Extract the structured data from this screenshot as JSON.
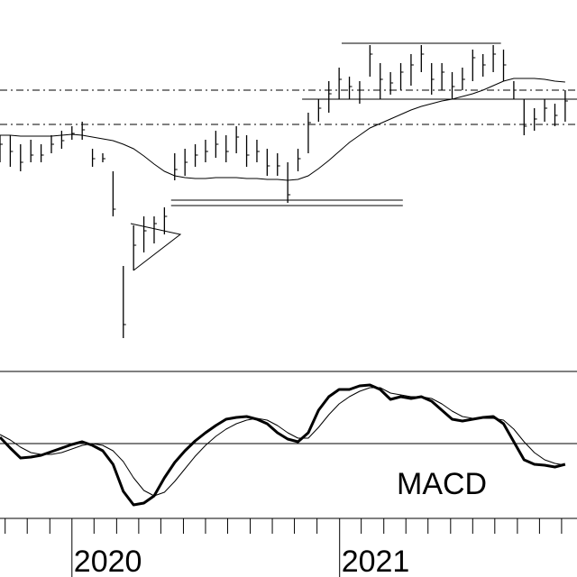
{
  "chart_data": [
    {
      "type": "ohlc",
      "x": [
        0,
        2,
        4,
        6,
        8,
        10,
        12,
        14,
        16,
        18,
        20,
        22,
        24,
        26,
        28,
        30,
        32,
        34,
        36,
        38,
        40,
        42,
        44,
        46,
        48,
        50,
        52,
        54,
        56,
        58,
        60,
        62,
        64,
        66,
        68,
        70,
        72,
        74,
        76,
        78,
        80,
        82,
        84,
        86,
        88,
        90,
        92,
        94,
        96,
        98,
        100,
        102,
        104,
        106,
        108,
        110
      ],
      "xlim": [
        0,
        112.3
      ],
      "xticks": [
        {
          "value": 14,
          "label": "2020"
        },
        {
          "value": 66.1,
          "label": "2021"
        }
      ],
      "minor_xticks": [
        1.0,
        5.3,
        9.7,
        18.3,
        22.7,
        27,
        31.3,
        35.7,
        40,
        44.3,
        48.7,
        53,
        57.3,
        61.7,
        70.3,
        74.7,
        79,
        83.3,
        87.7,
        92,
        96.3,
        100.7,
        105,
        109.3
      ],
      "ylim": [
        0,
        100
      ],
      "high": [
        62.5,
        62.5,
        60,
        61.25,
        60,
        62.5,
        63.75,
        65,
        66.25,
        58.75,
        57.5,
        52.5,
        26.25,
        37.5,
        40,
        40,
        42.5,
        57.5,
        58.75,
        60,
        61.25,
        63.75,
        62.5,
        65,
        62.5,
        61.25,
        58.75,
        57.5,
        55,
        58.75,
        68.75,
        72.5,
        77.5,
        81.25,
        78.75,
        77.5,
        87.5,
        82.5,
        80,
        82.5,
        85,
        87.5,
        82.5,
        82.5,
        80,
        81.25,
        86.25,
        85,
        87.5,
        86.25,
        77.5,
        72.5,
        70,
        72.5,
        71.25,
        75
      ],
      "low": [
        55,
        53.75,
        52.5,
        55,
        55,
        57.5,
        58.75,
        61.25,
        61.25,
        53.75,
        55,
        40,
        6.25,
        25,
        30,
        32.5,
        35,
        50,
        51.25,
        53.75,
        55,
        56.25,
        55,
        57.5,
        53.75,
        55,
        51.25,
        51.25,
        43.75,
        52.5,
        57.5,
        66.25,
        68.75,
        72.5,
        72.5,
        71.25,
        78.75,
        72.5,
        73.75,
        75,
        76.25,
        80,
        73.75,
        75,
        72.5,
        75,
        77.5,
        78.75,
        80,
        77.5,
        72.5,
        62.5,
        63.75,
        66.25,
        65,
        66.25
      ],
      "close": [
        60,
        58,
        55,
        57,
        57,
        60,
        61,
        63,
        64,
        56,
        56,
        42,
        10,
        32,
        36,
        38,
        40,
        53,
        55,
        57,
        58,
        60,
        58,
        62,
        57,
        58,
        54,
        54,
        46,
        56,
        66,
        70,
        74,
        78,
        76,
        75,
        85,
        78,
        77,
        80,
        82,
        85,
        78,
        80,
        76,
        78,
        84,
        82,
        85,
        82,
        75,
        65,
        67,
        70,
        68,
        72
      ],
      "moving_average": {
        "color": "#000000",
        "values": [
          62.5,
          62.5,
          62.25,
          62.25,
          62.25,
          62.25,
          62.5,
          62.75,
          62.5,
          62,
          61.5,
          61,
          60,
          58.75,
          56.75,
          54.5,
          52.5,
          51.25,
          50.75,
          50.5,
          50.5,
          50.75,
          50.75,
          50.75,
          50.5,
          50.5,
          50.25,
          50.25,
          50,
          50.25,
          51.25,
          53.25,
          55.5,
          58,
          60.5,
          62.5,
          64.5,
          65.75,
          67,
          68.25,
          69.5,
          70.5,
          71.25,
          72,
          72.5,
          73.25,
          74,
          75,
          76.25,
          77.5,
          78.25,
          78.25,
          78.25,
          78,
          77.5,
          77.25
        ]
      },
      "levels": [
        {
          "y": 75,
          "style": "dashdot",
          "x": [
            0,
            112.3
          ]
        },
        {
          "y": 65.5,
          "style": "dashdot",
          "x": [
            0,
            112.3
          ]
        },
        {
          "y": 88,
          "style": "solid",
          "x": [
            66.5,
            97.5
          ]
        },
        {
          "y": 72.5,
          "style": "solid",
          "x": [
            58.8,
            112.3
          ]
        },
        {
          "y": 44.5,
          "style": "solid",
          "x": [
            33.3,
            78.4
          ]
        },
        {
          "y": 43,
          "style": "solid",
          "x": [
            33.3,
            78.4
          ]
        }
      ],
      "color": "#000000"
    },
    {
      "type": "line",
      "title": "MACD",
      "ylim": [
        -2,
        2
      ],
      "zero_line": 0,
      "series": [
        {
          "color": "#000000",
          "width": 3,
          "values": [
            0.175,
            -0.125,
            -0.4,
            -0.375,
            -0.325,
            -0.225,
            -0.125,
            -0.025,
            0.05,
            -0.05,
            -0.2,
            -0.575,
            -1.325,
            -1.7,
            -1.65,
            -1.45,
            -0.95,
            -0.525,
            -0.2,
            0.075,
            0.3,
            0.5,
            0.675,
            0.725,
            0.75,
            0.675,
            0.55,
            0.3,
            0.125,
            0.05,
            0.3,
            0.925,
            1.3,
            1.5,
            1.5,
            1.6,
            1.625,
            1.5,
            1.225,
            1.3,
            1.25,
            1.3,
            1.175,
            0.925,
            0.675,
            0.625,
            0.675,
            0.725,
            0.75,
            0.55,
            0.05,
            -0.45,
            -0.575,
            -0.6,
            -0.65,
            -0.575
          ]
        },
        {
          "color": "#000000",
          "width": 1,
          "values": [
            0.25,
            0.1,
            -0.1,
            -0.25,
            -0.3,
            -0.3,
            -0.25,
            -0.15,
            -0.05,
            0,
            -0.05,
            -0.2,
            -0.5,
            -0.95,
            -1.3,
            -1.45,
            -1.35,
            -1.05,
            -0.7,
            -0.35,
            -0.05,
            0.2,
            0.4,
            0.55,
            0.65,
            0.7,
            0.65,
            0.5,
            0.3,
            0.15,
            0.15,
            0.45,
            0.8,
            1.1,
            1.3,
            1.45,
            1.55,
            1.55,
            1.4,
            1.35,
            1.3,
            1.3,
            1.25,
            1.1,
            0.9,
            0.75,
            0.7,
            0.7,
            0.7,
            0.65,
            0.4,
            0.05,
            -0.25,
            -0.45,
            -0.55,
            -0.6
          ]
        }
      ]
    }
  ]
}
